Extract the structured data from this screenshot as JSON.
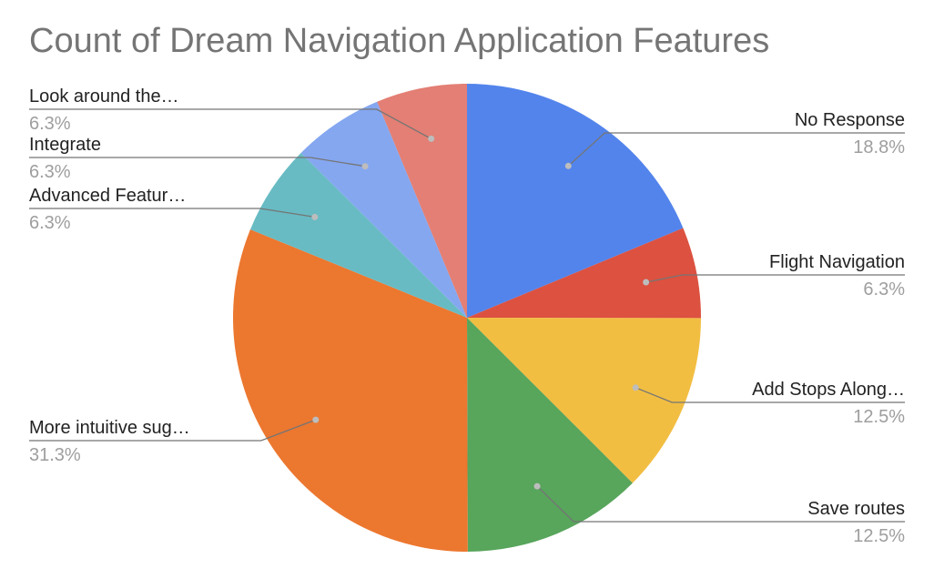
{
  "chart_data": {
    "type": "pie",
    "title": "Count of Dream Navigation Application Features",
    "slices": [
      {
        "label": "No Response",
        "percent_label": "18.8%",
        "value": 18.8,
        "color": "#5384ec"
      },
      {
        "label": "Flight Navigation",
        "percent_label": "6.3%",
        "value": 6.3,
        "color": "#dc5140"
      },
      {
        "label": "Add Stops Along…",
        "percent_label": "12.5%",
        "value": 12.5,
        "color": "#f2be42"
      },
      {
        "label": "Save routes",
        "percent_label": "12.5%",
        "value": 12.5,
        "color": "#58a55c"
      },
      {
        "label": "More intuitive sug…",
        "percent_label": "31.3%",
        "value": 31.3,
        "color": "#ec772f"
      },
      {
        "label": "Advanced Featur…",
        "percent_label": "6.3%",
        "value": 6.3,
        "color": "#68bbc3"
      },
      {
        "label": "Integrate",
        "percent_label": "6.3%",
        "value": 6.3,
        "color": "#85a7f0"
      },
      {
        "label": "Look around the…",
        "percent_label": "6.3%",
        "value": 6.3,
        "color": "#e37f74"
      }
    ],
    "legend": "none",
    "label_placement": "outside-with-leader-lines"
  }
}
